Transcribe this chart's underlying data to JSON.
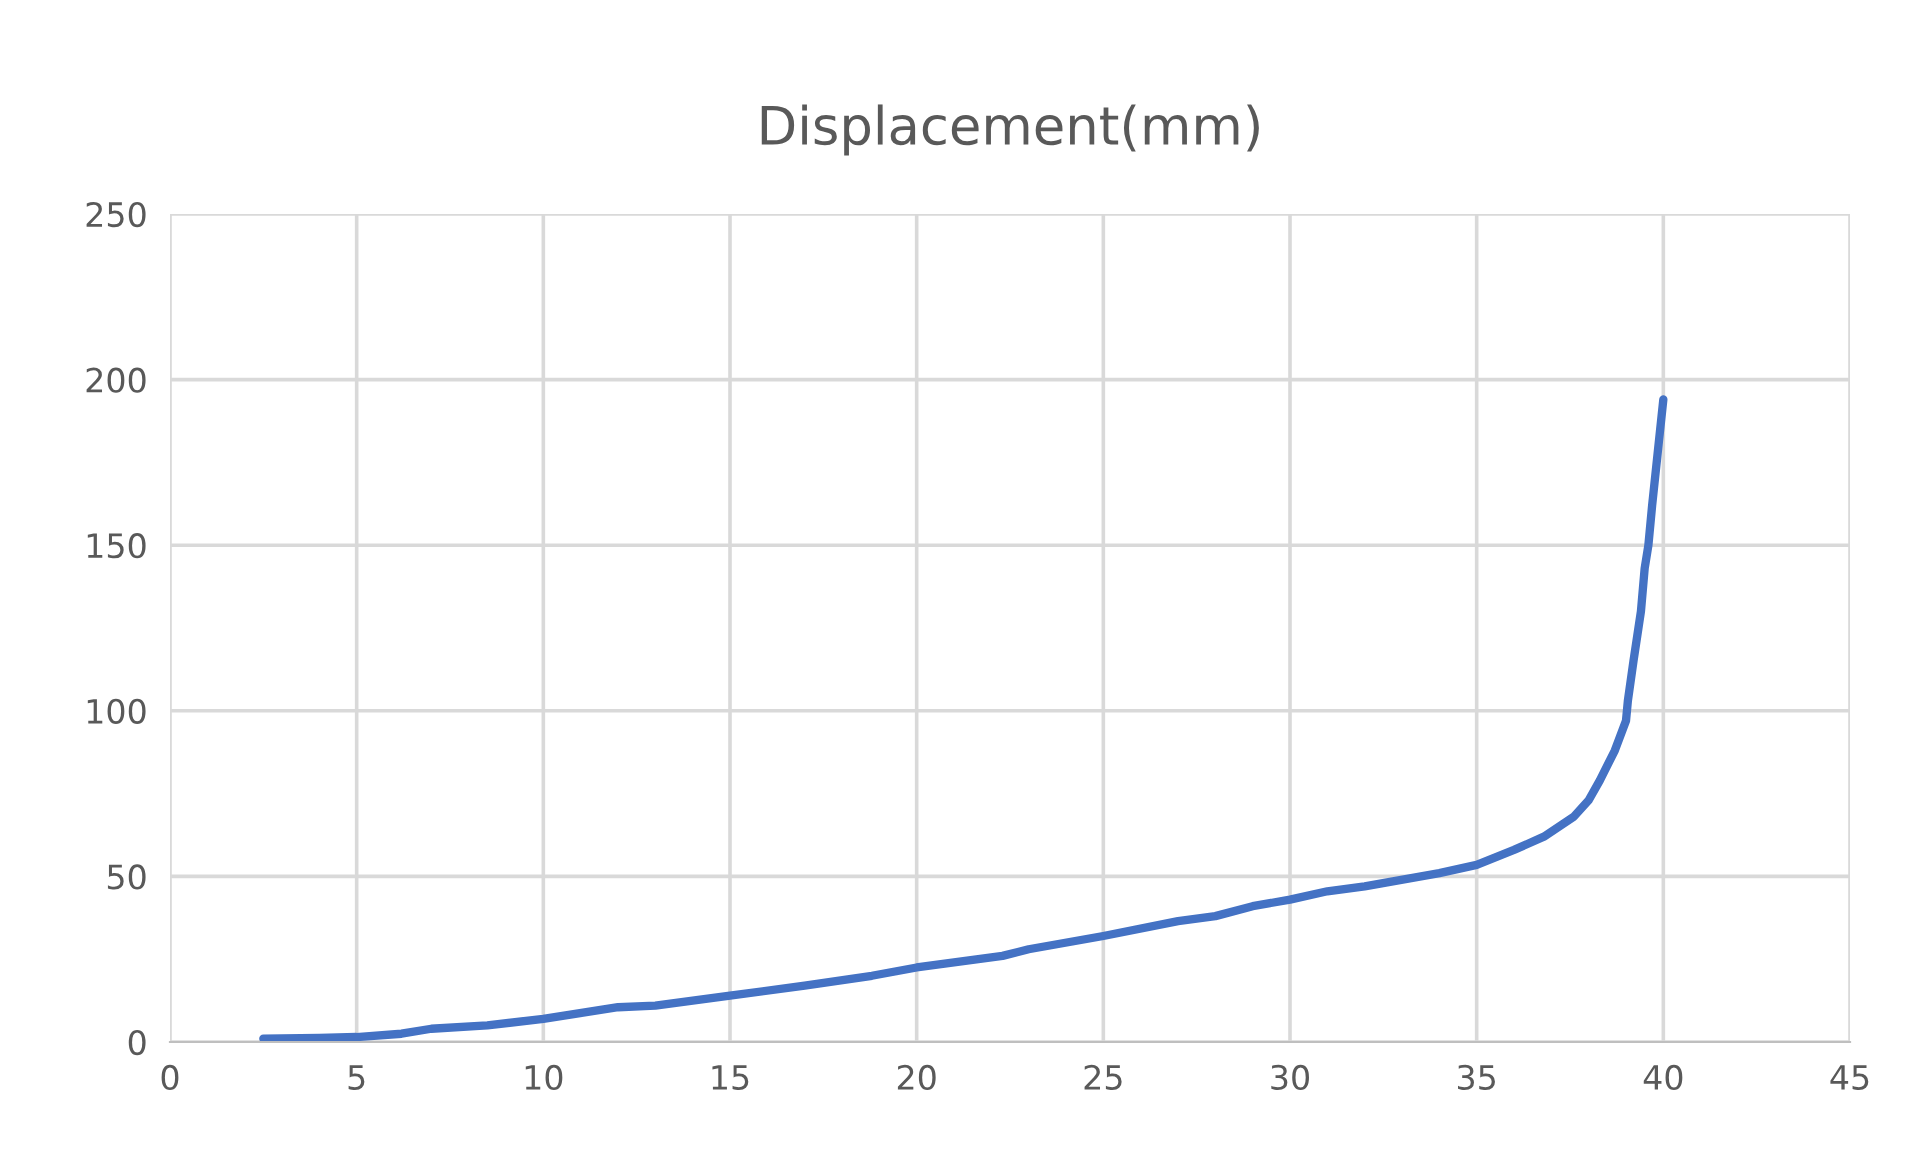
{
  "chart_data": {
    "type": "line",
    "title": "Displacement(mm)",
    "x": [
      2.5,
      4,
      5,
      6.2,
      7,
      8.5,
      10,
      12,
      13,
      15,
      17,
      18.8,
      20,
      22.3,
      23,
      25,
      27,
      28,
      29,
      30,
      31,
      32,
      34,
      35,
      36,
      36.8,
      37.6,
      38,
      38.3,
      38.7,
      39,
      39.05,
      39.2,
      39.4,
      39.5,
      39.6,
      39.7,
      40
    ],
    "series": [
      {
        "color": "#4472c4",
        "values": [
          1,
          1.2,
          1.5,
          2.5,
          4,
          5,
          7,
          10.5,
          11,
          14,
          17,
          20,
          22.5,
          26,
          28,
          32,
          36.5,
          38,
          41,
          43,
          45.5,
          47,
          51,
          53.5,
          58,
          62,
          68,
          73,
          79,
          88,
          97,
          103,
          115,
          130,
          143,
          150,
          162,
          194
        ]
      }
    ],
    "xlim": [
      0,
      45
    ],
    "xticks": [
      0,
      5,
      10,
      15,
      20,
      25,
      30,
      35,
      40,
      45
    ],
    "ylim": [
      0,
      250
    ],
    "yticks": [
      0,
      50,
      100,
      150,
      200,
      250
    ],
    "grid": true,
    "marker": "none",
    "line_style": "solid"
  }
}
